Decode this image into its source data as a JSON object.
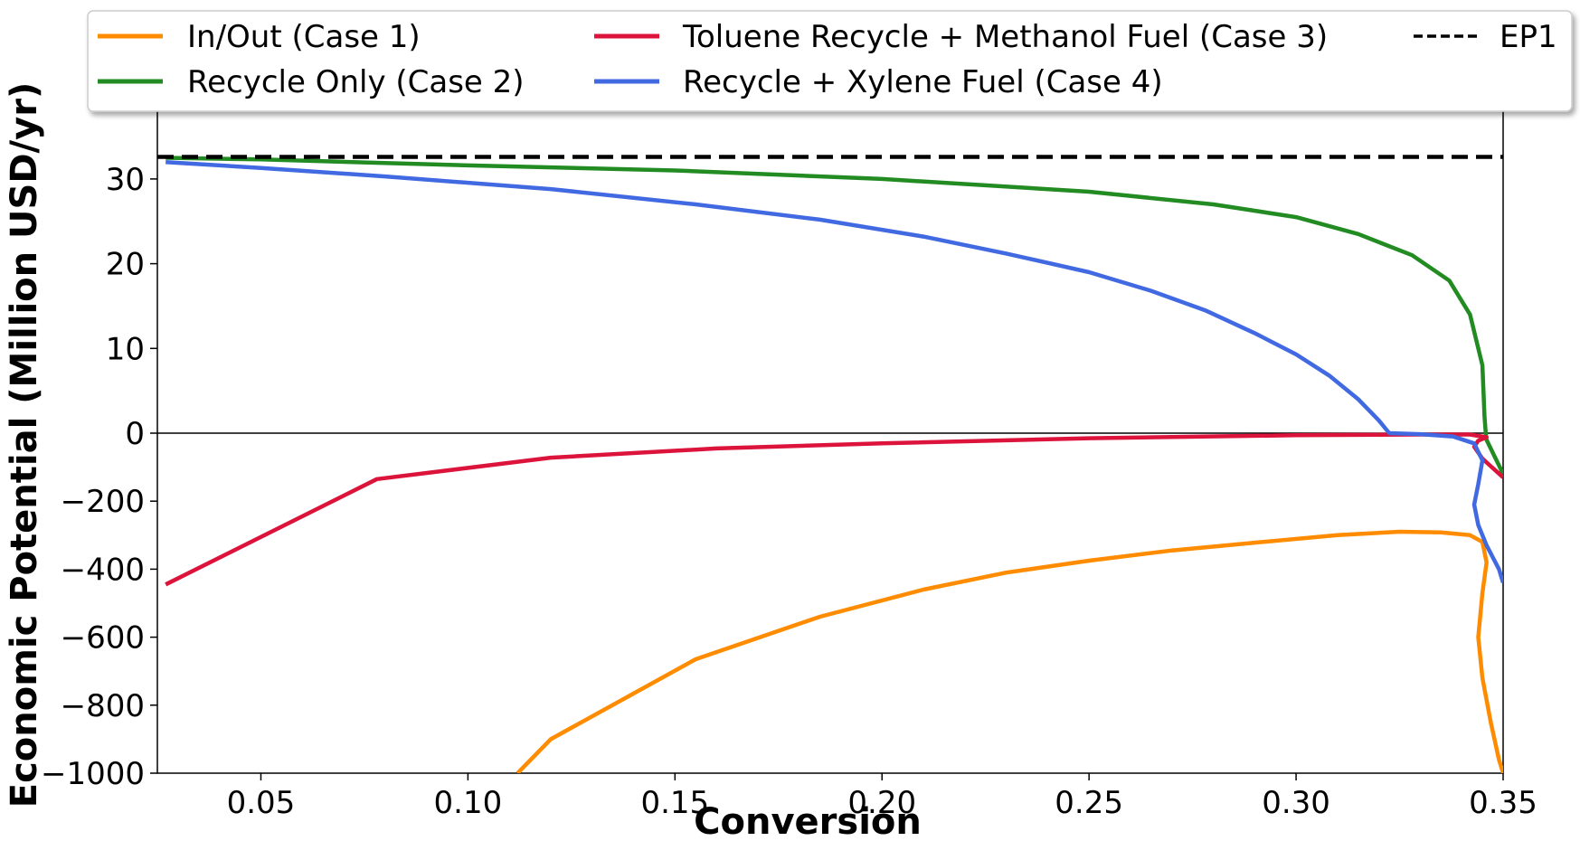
{
  "chart_data": {
    "type": "line",
    "xlabel": "Conversion",
    "ylabel": "Economic Potential (Million USD/yr)",
    "xlim": [
      0.025,
      0.35
    ],
    "scale": "symlog (linear above 0, compressed below 0)",
    "upper_axis_ylim": [
      0,
      35
    ],
    "lower_axis_ylim": [
      -1000,
      0
    ],
    "x_ticks": [
      "0.05",
      "0.10",
      "0.15",
      "0.20",
      "0.25",
      "0.30",
      "0.35"
    ],
    "x_tick_values": [
      0.05,
      0.1,
      0.15,
      0.2,
      0.25,
      0.3,
      0.35
    ],
    "y_ticks_upper": [
      "30",
      "20",
      "10",
      "0"
    ],
    "y_tick_values_upper": [
      30,
      20,
      10,
      0
    ],
    "y_ticks_lower": [
      "−200",
      "−400",
      "−600",
      "−800",
      "−1000"
    ],
    "y_tick_values_lower": [
      -200,
      -400,
      -600,
      -800,
      -1000
    ],
    "legend_position": "top",
    "series": [
      {
        "name": "In/Out (Case 1)",
        "color": "#ff8c00",
        "style": "solid",
        "points": [
          [
            0.112,
            -1000
          ],
          [
            0.12,
            -900
          ],
          [
            0.155,
            -665
          ],
          [
            0.185,
            -540
          ],
          [
            0.21,
            -460
          ],
          [
            0.23,
            -410
          ],
          [
            0.25,
            -375
          ],
          [
            0.27,
            -345
          ],
          [
            0.29,
            -322
          ],
          [
            0.31,
            -300
          ],
          [
            0.325,
            -290
          ],
          [
            0.335,
            -292
          ],
          [
            0.342,
            -300
          ],
          [
            0.345,
            -320
          ],
          [
            0.346,
            -380
          ],
          [
            0.345,
            -470
          ],
          [
            0.344,
            -600
          ],
          [
            0.345,
            -720
          ],
          [
            0.347,
            -850
          ],
          [
            0.349,
            -960
          ],
          [
            0.35,
            -1000
          ]
        ]
      },
      {
        "name": "Recycle Only (Case 2)",
        "color": "#228b22",
        "style": "solid",
        "points": [
          [
            0.027,
            32.5
          ],
          [
            0.05,
            32.3
          ],
          [
            0.1,
            31.6
          ],
          [
            0.15,
            31
          ],
          [
            0.2,
            30
          ],
          [
            0.25,
            28.5
          ],
          [
            0.28,
            27
          ],
          [
            0.3,
            25.5
          ],
          [
            0.315,
            23.5
          ],
          [
            0.328,
            21
          ],
          [
            0.337,
            18
          ],
          [
            0.342,
            14
          ],
          [
            0.345,
            8
          ],
          [
            0.3455,
            2
          ],
          [
            0.3458,
            0
          ],
          [
            0.346,
            -20
          ],
          [
            0.35,
            -120
          ]
        ]
      },
      {
        "name": "Toluene Recycle + Methanol Fuel (Case 3)",
        "color": "#dc143c",
        "style": "solid",
        "points": [
          [
            0.027,
            -445
          ],
          [
            0.078,
            -135
          ],
          [
            0.12,
            -72
          ],
          [
            0.16,
            -45
          ],
          [
            0.2,
            -30
          ],
          [
            0.25,
            -15
          ],
          [
            0.3,
            -6
          ],
          [
            0.33,
            -4
          ],
          [
            0.342,
            -4
          ],
          [
            0.346,
            -12
          ],
          [
            0.344,
            -22
          ],
          [
            0.343,
            -40
          ],
          [
            0.345,
            -75
          ],
          [
            0.35,
            -130
          ]
        ]
      },
      {
        "name": "Recycle + Xylene Fuel (Case 4)",
        "color": "#4169e1",
        "style": "solid",
        "points": [
          [
            0.027,
            32
          ],
          [
            0.05,
            31.3
          ],
          [
            0.08,
            30.3
          ],
          [
            0.12,
            28.8
          ],
          [
            0.155,
            27
          ],
          [
            0.185,
            25.2
          ],
          [
            0.21,
            23.2
          ],
          [
            0.23,
            21.2
          ],
          [
            0.25,
            19
          ],
          [
            0.265,
            16.8
          ],
          [
            0.278,
            14.5
          ],
          [
            0.29,
            11.8
          ],
          [
            0.3,
            9.3
          ],
          [
            0.308,
            6.8
          ],
          [
            0.315,
            4
          ],
          [
            0.32,
            1.5
          ],
          [
            0.3225,
            0
          ],
          [
            0.33,
            -3
          ],
          [
            0.338,
            -10
          ],
          [
            0.343,
            -30
          ],
          [
            0.345,
            -80
          ],
          [
            0.344,
            -150
          ],
          [
            0.343,
            -210
          ],
          [
            0.344,
            -270
          ],
          [
            0.346,
            -330
          ],
          [
            0.349,
            -400
          ],
          [
            0.35,
            -440
          ]
        ]
      },
      {
        "name": "EP1",
        "color": "#000000",
        "style": "dashed",
        "points": [
          [
            0.025,
            32.6
          ],
          [
            0.35,
            32.6
          ]
        ]
      }
    ]
  },
  "legend": {
    "items": [
      {
        "label": "In/Out (Case 1)",
        "color": "#ff8c00",
        "style": "solid"
      },
      {
        "label": "Recycle Only (Case 2)",
        "color": "#228b22",
        "style": "solid"
      },
      {
        "label": "Toluene Recycle + Methanol Fuel (Case 3)",
        "color": "#dc143c",
        "style": "solid"
      },
      {
        "label": "Recycle + Xylene Fuel (Case 4)",
        "color": "#4169e1",
        "style": "solid"
      },
      {
        "label": "EP1",
        "color": "#000000",
        "style": "dashed"
      }
    ]
  }
}
